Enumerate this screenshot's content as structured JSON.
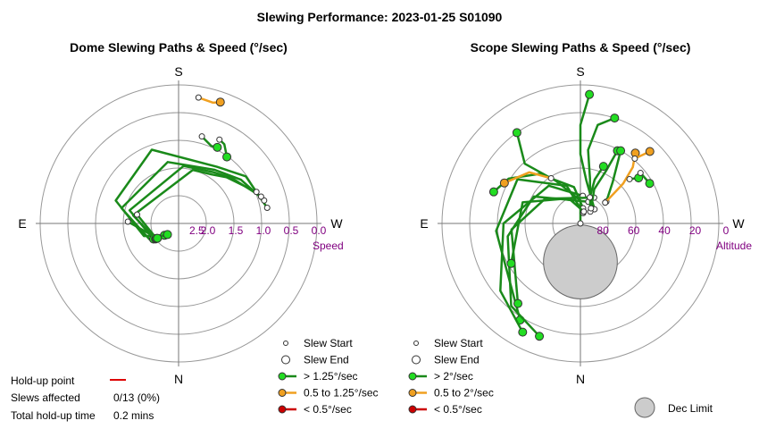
{
  "title": "Slewing Performance: 2023-01-25 S01090",
  "colors": {
    "ring": "#999999",
    "axis": "#777777",
    "fast": "#1a8a1a",
    "fast_marker": "#22dd22",
    "medium": "#f0a020",
    "medium_marker": "#f0a020",
    "slow": "#cc0000",
    "scale_text": "#800080",
    "dec_limit": "#cccccc",
    "holdup_line": "#dd0000"
  },
  "icons": {
    "slew_start": "small-hollow-circle-icon",
    "slew_end": "large-hollow-circle-icon",
    "speed_legend": "line-with-dot-icon",
    "dec_limit": "grey-disc-icon"
  },
  "chart_data": [
    {
      "type": "polar-path",
      "title": "Dome Slewing Paths & Speed (°/sec)",
      "cardinals": {
        "top": "S",
        "bottom": "N",
        "left": "E",
        "right": "W"
      },
      "radial_ticks": [
        "2.5",
        "2.0",
        "1.5",
        "1.0",
        "0.5",
        "0.0"
      ],
      "radial_label": "Speed",
      "radial_scale": "speed decreases outward from centre (3.0 at centre, 0.0 at rim)",
      "grid": true,
      "legend": [
        {
          "label": "Slew Start",
          "icon": "small-hollow-circle"
        },
        {
          "label": "Slew End",
          "icon": "large-hollow-circle"
        },
        {
          "label": "> 1.25°/sec",
          "color": "#1a8a1a"
        },
        {
          "label": "0.5 to 1.25°/sec",
          "color": "#f0a020"
        },
        {
          "label": "< 0.5°/sec",
          "color": "#cc0000"
        }
      ],
      "series": [
        {
          "speed_class": "medium",
          "points": [
            [
              9,
              0.24
            ],
            [
              16,
              0.28
            ],
            [
              19,
              0.22
            ]
          ]
        },
        {
          "speed_class": "fast",
          "points": [
            [
              15,
              1.05
            ],
            [
              23,
              1.18
            ],
            [
              27,
              1.15
            ]
          ]
        },
        {
          "speed_class": "fast",
          "points": [
            [
              26,
              0.98
            ],
            [
              30,
              1.02
            ],
            [
              36,
              1.22
            ]
          ]
        },
        {
          "speed_class": "fast",
          "points": [
            [
              80,
              1.05
            ],
            [
              55,
              1.22
            ],
            [
              34,
              1.52
            ],
            [
              -20,
              1.3
            ],
            [
              -70,
              1.55
            ],
            [
              -110,
              2.2
            ],
            [
              -130,
              2.6
            ]
          ]
        },
        {
          "speed_class": "fast",
          "points": [
            [
              75,
              1.08
            ],
            [
              55,
              1.35
            ],
            [
              34,
              1.6
            ],
            [
              -10,
              1.65
            ],
            [
              -75,
              1.72
            ],
            [
              -118,
              2.28
            ],
            [
              -135,
              2.66
            ]
          ]
        },
        {
          "speed_class": "fast",
          "points": [
            [
              72,
              1.12
            ],
            [
              50,
              1.48
            ],
            [
              34,
              1.66
            ],
            [
              5,
              1.75
            ],
            [
              -75,
              1.9
            ],
            [
              -122,
              2.36
            ]
          ]
        },
        {
          "speed_class": "fast",
          "points": [
            [
              68,
              1.18
            ],
            [
              46,
              1.56
            ],
            [
              34,
              1.72
            ],
            [
              15,
              1.8
            ],
            [
              -80,
              2.0
            ],
            [
              -124,
              2.4
            ]
          ]
        },
        {
          "speed_class": "fast",
          "points": [
            [
              -78,
              2.08
            ],
            [
              -124,
              2.42
            ]
          ]
        },
        {
          "speed_class": "fast",
          "points": [
            [
              -88,
              1.9
            ],
            [
              -125,
              2.44
            ]
          ]
        }
      ]
    },
    {
      "type": "polar-path",
      "title": "Scope Slewing Paths & Speed (°/sec)",
      "cardinals": {
        "top": "S",
        "bottom": "N",
        "left": "E",
        "right": "W"
      },
      "radial_ticks": [
        "80",
        "60",
        "40",
        "20",
        "0"
      ],
      "radial_label": "Altitude",
      "grid": true,
      "dec_limit": {
        "label": "Dec Limit",
        "azimuth": 180,
        "altitude": 65,
        "radius_deg": 24
      },
      "legend": [
        {
          "label": "Slew Start",
          "icon": "small-hollow-circle"
        },
        {
          "label": "Slew End",
          "icon": "large-hollow-circle"
        },
        {
          "label": "> 2°/sec",
          "color": "#1a8a1a"
        },
        {
          "label": "0.5 to 2°/sec",
          "color": "#f0a020"
        },
        {
          "label": "< 0.5°/sec",
          "color": "#cc0000"
        }
      ],
      "series": [
        {
          "speed_class": "fast",
          "points": [
            [
              10,
              90
            ],
            [
              0,
              75
            ],
            [
              -30,
              58
            ],
            [
              -43,
              37
            ],
            [
              -35,
              18
            ]
          ]
        },
        {
          "speed_class": "fast",
          "points": [
            [
              10,
              80
            ],
            [
              -10,
              66
            ],
            [
              -40,
              48
            ],
            [
              -58,
              35
            ],
            [
              -70,
              30
            ]
          ]
        },
        {
          "speed_class": "fast",
          "points": [
            [
              15,
              83
            ],
            [
              -20,
              64
            ],
            [
              -55,
              40
            ],
            [
              -95,
              35
            ],
            [
              -148,
              16
            ]
          ]
        },
        {
          "speed_class": "fast",
          "points": [
            [
              5,
              72
            ],
            [
              -40,
              58
            ],
            [
              -90,
              40
            ],
            [
              -130,
              22
            ],
            [
              -152,
              10
            ]
          ]
        },
        {
          "speed_class": "fast",
          "points": [
            [
              20,
              75
            ],
            [
              -60,
              55
            ],
            [
              -100,
              42
            ],
            [
              -140,
              20
            ],
            [
              -160,
              12
            ]
          ]
        },
        {
          "speed_class": "fast",
          "points": [
            [
              28,
              71
            ],
            [
              -55,
              62
            ],
            [
              -95,
              45
            ],
            [
              -142,
              24
            ]
          ]
        },
        {
          "speed_class": "fast",
          "points": [
            [
              16,
              82
            ],
            [
              -25,
              72
            ],
            [
              -70,
              50
            ],
            [
              -120,
              38
            ]
          ]
        },
        {
          "speed_class": "fast",
          "points": [
            [
              45,
              77
            ],
            [
              8,
              62
            ],
            [
              0,
              45
            ],
            [
              0,
              26
            ],
            [
              4,
              6
            ]
          ]
        },
        {
          "speed_class": "fast",
          "points": [
            [
              40,
              80
            ],
            [
              12,
              60
            ],
            [
              6,
              42
            ],
            [
              10,
              25
            ],
            [
              18,
              18
            ]
          ]
        },
        {
          "speed_class": "fast",
          "points": [
            [
              35,
              78
            ],
            [
              22,
              66
            ],
            [
              26,
              52
            ],
            [
              27,
              37
            ]
          ]
        },
        {
          "speed_class": "fast",
          "points": [
            [
              50,
              68
            ],
            [
              38,
              56
            ],
            [
              32,
              45
            ],
            [
              29,
              36
            ]
          ]
        },
        {
          "speed_class": "medium",
          "points": [
            [
              -33,
              55
            ],
            [
              -45,
              43
            ],
            [
              -62,
              34
            ]
          ]
        },
        {
          "speed_class": "medium",
          "points": [
            [
              50,
              69
            ],
            [
              47,
              52
            ],
            [
              43,
              40
            ],
            [
              38,
              32
            ]
          ]
        },
        {
          "speed_class": "medium",
          "points": [
            [
              40,
              35
            ],
            [
              44,
              25
            ]
          ]
        },
        {
          "speed_class": "fast",
          "points": [
            [
              20,
              72
            ],
            [
              18,
              60
            ],
            [
              22,
              50
            ]
          ]
        },
        {
          "speed_class": "fast",
          "points": [
            [
              48,
              47
            ],
            [
              52,
              42
            ]
          ]
        },
        {
          "speed_class": "fast",
          "points": [
            [
              50,
              39
            ],
            [
              60,
              38
            ]
          ]
        }
      ]
    }
  ],
  "holdup": {
    "point_label": "Hold-up point",
    "slews_label": "Slews affected",
    "slews_value": "0/13 (0%)",
    "time_label": "Total hold-up time",
    "time_value": "0.2 mins"
  }
}
